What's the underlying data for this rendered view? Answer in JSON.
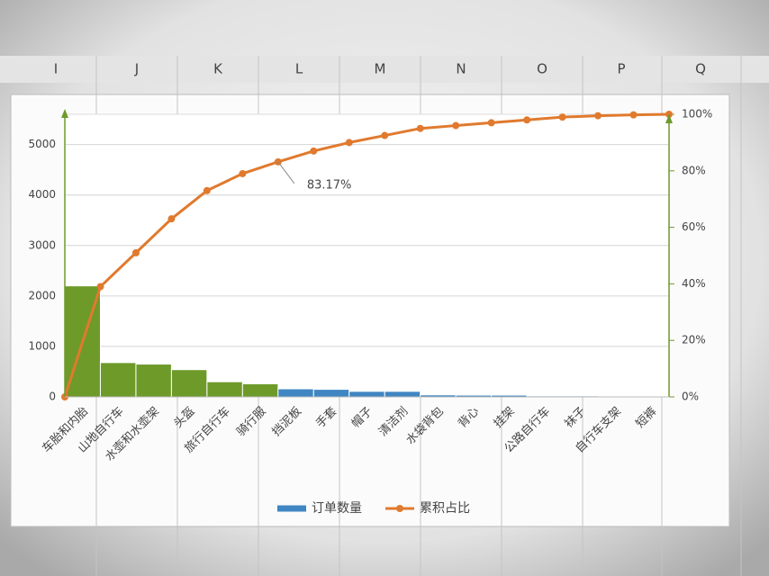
{
  "sheet": {
    "columns": [
      "I",
      "J",
      "K",
      "L",
      "M",
      "N",
      "O",
      "P",
      "Q"
    ]
  },
  "chart_data": {
    "type": "bar",
    "categories": [
      "车胎和内胎",
      "山地自行车",
      "水壶和水壶架",
      "头盔",
      "旅行自行车",
      "骑行服",
      "挡泥板",
      "手套",
      "帽子",
      "清洁剂",
      "水袋背包",
      "背心",
      "挂架",
      "公路自行车",
      "袜子",
      "自行车支架",
      "短裤"
    ],
    "series": [
      {
        "name": "订单数量",
        "type": "bar",
        "color": "#3f86c2",
        "colors": [
          "#6e9a2a",
          "#6e9a2a",
          "#6e9a2a",
          "#6e9a2a",
          "#6e9a2a",
          "#6e9a2a",
          "#3f86c2",
          "#3f86c2",
          "#3f86c2",
          "#3f86c2",
          "#3f86c2",
          "#3f86c2",
          "#3f86c2",
          "#3f86c2",
          "#3f86c2",
          "#3f86c2",
          "#3f86c2"
        ],
        "values": [
          2200,
          680,
          650,
          540,
          300,
          260,
          160,
          150,
          110,
          110,
          40,
          35,
          35,
          20,
          20,
          10,
          5
        ]
      },
      {
        "name": "累积占比",
        "type": "line",
        "axis": "y2",
        "color": "#e07a2e",
        "values": [
          39,
          51,
          63,
          73,
          79,
          83.17,
          87,
          90,
          92.5,
          95,
          96,
          97,
          98,
          99,
          99.5,
          99.8,
          100
        ],
        "value_labels": [
          null,
          null,
          null,
          null,
          null,
          "83.17%",
          null,
          null,
          null,
          null,
          null,
          null,
          null,
          null,
          null,
          null,
          null
        ]
      }
    ],
    "ylim": [
      0,
      5600
    ],
    "yticks": [
      0,
      1000,
      2000,
      3000,
      4000,
      5000
    ],
    "y2lim": [
      0,
      100
    ],
    "y2ticks": [
      {
        "value": 0,
        "label": "0%"
      },
      {
        "value": 20,
        "label": "20%"
      },
      {
        "value": 40,
        "label": "40%"
      },
      {
        "value": 60,
        "label": "60%"
      },
      {
        "value": 80,
        "label": "80%"
      },
      {
        "value": 100,
        "label": "100%"
      }
    ],
    "grid": true,
    "legend": "bottom"
  }
}
